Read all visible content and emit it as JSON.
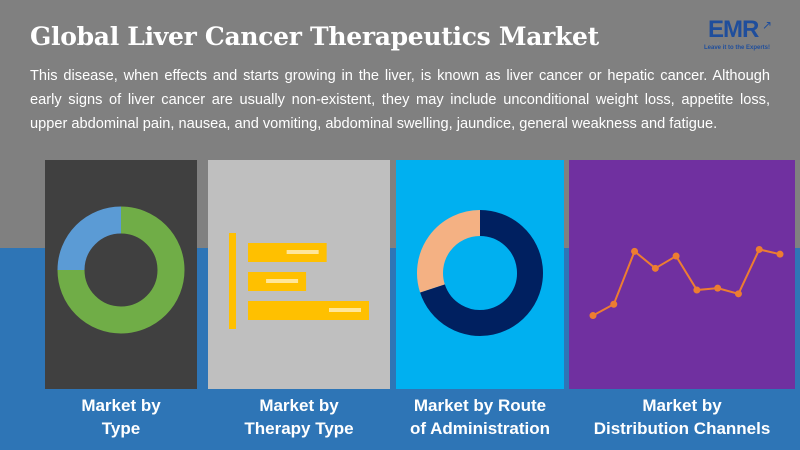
{
  "header": {
    "title": "Global Liver Cancer Therapeutics Market",
    "description": "This disease, when effects and starts growing in the liver, is known as liver cancer or hepatic cancer. Although early signs of liver cancer are usually non-existent, they may include unconditional weight loss, appetite loss, upper abdominal pain, nausea, and vomiting, abdominal swelling, jaundice, general weakness and fatigue."
  },
  "logo": {
    "text": "EMR",
    "tagline": "Leave it to the Experts!"
  },
  "colors": {
    "background_gray": "#808080",
    "background_blue": "#2e75b6",
    "card1": "#404040",
    "card2": "#bfbfbf",
    "card3": "#00b0f0",
    "card4": "#7030a0",
    "green": "#70ad47",
    "light_blue": "#5b9bd5",
    "yellow": "#ffc000",
    "peach": "#f4b183",
    "navy": "#002060",
    "orange": "#ed7d31"
  },
  "cards": [
    {
      "label_line1": "Market by",
      "label_line2": "Type"
    },
    {
      "label_line1": "Market by",
      "label_line2": "Therapy Type"
    },
    {
      "label_line1": "Market by Route",
      "label_line2": "of Administration"
    },
    {
      "label_line1": "Market by",
      "label_line2": "Distribution Channels"
    }
  ],
  "chart_data": [
    {
      "type": "pie",
      "variant": "donut",
      "slices": [
        {
          "value": 75,
          "color": "#70ad47"
        },
        {
          "value": 25,
          "color": "#5b9bd5"
        }
      ]
    },
    {
      "type": "bar",
      "orientation": "horizontal",
      "values": [
        65,
        48,
        100
      ],
      "color": "#ffc000"
    },
    {
      "type": "pie",
      "variant": "donut",
      "slices": [
        {
          "value": 70,
          "color": "#002060"
        },
        {
          "value": 30,
          "color": "#f4b183"
        }
      ]
    },
    {
      "type": "line",
      "values": [
        10,
        22,
        78,
        60,
        73,
        37,
        39,
        33,
        80,
        75
      ],
      "color": "#ed7d31"
    }
  ]
}
